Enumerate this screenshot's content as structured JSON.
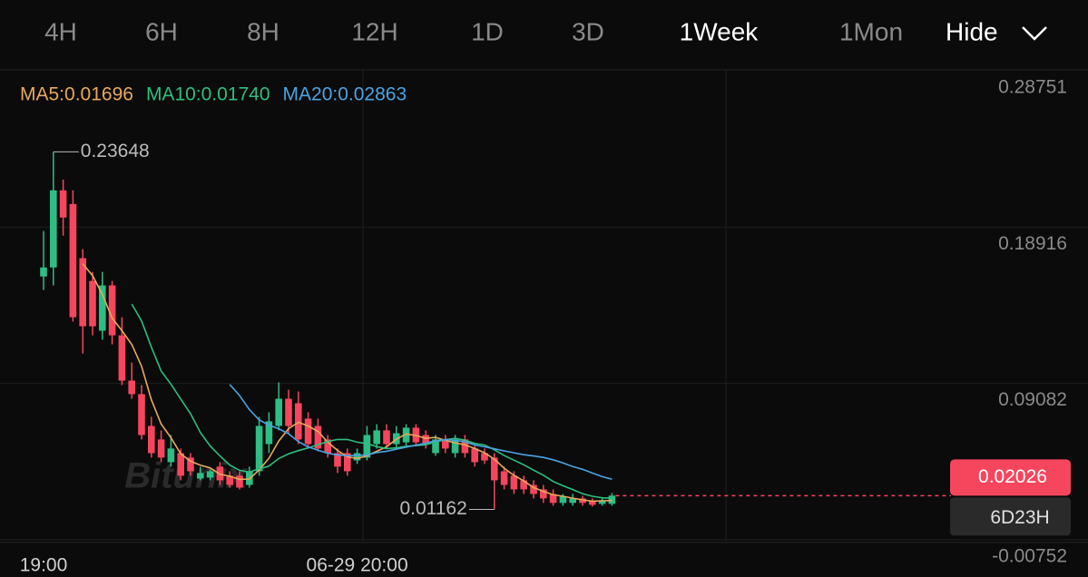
{
  "tabs": [
    {
      "label": "4H"
    },
    {
      "label": "6H"
    },
    {
      "label": "8H"
    },
    {
      "label": "12H"
    },
    {
      "label": "1D"
    },
    {
      "label": "3D"
    },
    {
      "label": "1Week",
      "active": true
    },
    {
      "label": "1Mon"
    }
  ],
  "hide_button": "Hide",
  "watermark": "Bitunix",
  "chart_data": {
    "type": "candlestick",
    "up_color": "#2ebd85",
    "down_color": "#f6465d",
    "categories": [
      "19:00",
      null,
      null,
      null,
      null,
      null,
      null,
      null,
      null,
      null,
      null,
      null,
      null,
      null,
      null,
      null,
      null,
      null,
      null,
      null,
      null,
      null,
      null,
      null,
      null,
      null,
      null,
      null,
      null,
      null,
      null,
      null,
      "06-29 20:00",
      null,
      null,
      null,
      null,
      null,
      null,
      null,
      null,
      null,
      null,
      null,
      null,
      null,
      null,
      null,
      null,
      null,
      null,
      null,
      null,
      null,
      null,
      null,
      null,
      null,
      null
    ],
    "open": [
      0.1581,
      0.1638,
      0.2123,
      0.2037,
      0.1696,
      0.1553,
      0.124,
      0.1525,
      0.1211,
      0.0926,
      0.0841,
      0.0641,
      0.0556,
      0.0413,
      0.047,
      0.0442,
      0.031,
      0.0316,
      0.0385,
      0.0328,
      0.0328,
      0.027,
      0.0356,
      0.0527,
      0.0641,
      0.0812,
      0.0784,
      0.0687,
      0.0641,
      0.0556,
      0.047,
      0.047,
      0.0424,
      0.0442,
      0.0527,
      0.0613,
      0.0527,
      0.0538,
      0.063,
      0.0584,
      0.047,
      0.0556,
      0.047,
      0.0556,
      0.0499,
      0.047,
      0.0442,
      0.0356,
      0.0328,
      0.0299,
      0.027,
      0.0242,
      0.0213,
      0.0157,
      0.0157,
      0.0185,
      0.0168,
      0.0151,
      0.0151
    ],
    "high": [
      0.1867,
      0.23648,
      0.2191,
      0.2123,
      0.1753,
      0.161,
      0.161,
      0.1553,
      0.1325,
      0.104,
      0.0898,
      0.0698,
      0.0613,
      0.0584,
      0.0499,
      0.047,
      0.0385,
      0.0367,
      0.0413,
      0.0356,
      0.0356,
      0.0385,
      0.0698,
      0.0727,
      0.0915,
      0.0869,
      0.0858,
      0.0727,
      0.0687,
      0.0584,
      0.0499,
      0.0499,
      0.0499,
      0.0641,
      0.0652,
      0.0652,
      0.0641,
      0.0652,
      0.0652,
      0.0613,
      0.0584,
      0.0584,
      0.0584,
      0.0584,
      0.0516,
      0.0499,
      0.047,
      0.0385,
      0.0356,
      0.0328,
      0.0299,
      0.027,
      0.0242,
      0.0213,
      0.0213,
      0.0202,
      0.0185,
      0.0185,
      0.0219
    ],
    "low": [
      0.1496,
      0.1525,
      0.1838,
      0.1297,
      0.1097,
      0.1211,
      0.1183,
      0.1154,
      0.0898,
      0.0812,
      0.0556,
      0.0442,
      0.0413,
      0.0385,
      0.0299,
      0.0328,
      0.0299,
      0.0299,
      0.027,
      0.0253,
      0.0242,
      0.0253,
      0.0328,
      0.047,
      0.0613,
      0.0595,
      0.0527,
      0.0499,
      0.0481,
      0.0442,
      0.0345,
      0.0328,
      0.0402,
      0.0424,
      0.0499,
      0.0499,
      0.0504,
      0.0516,
      0.0516,
      0.0499,
      0.0453,
      0.047,
      0.0442,
      0.0442,
      0.0385,
      0.0402,
      0.01162,
      0.0242,
      0.0213,
      0.0213,
      0.0185,
      0.0157,
      0.0139,
      0.0139,
      0.0139,
      0.0139,
      0.0134,
      0.0139,
      0.0139
    ],
    "close": [
      0.1638,
      0.2123,
      0.1952,
      0.1325,
      0.1268,
      0.1268,
      0.1525,
      0.1211,
      0.0926,
      0.0841,
      0.0584,
      0.047,
      0.0442,
      0.0499,
      0.0328,
      0.0356,
      0.0345,
      0.0356,
      0.0299,
      0.027,
      0.0253,
      0.0356,
      0.0641,
      0.067,
      0.0812,
      0.0641,
      0.0556,
      0.0527,
      0.0499,
      0.047,
      0.0385,
      0.0356,
      0.047,
      0.0584,
      0.0613,
      0.0527,
      0.0595,
      0.063,
      0.0538,
      0.0527,
      0.0556,
      0.0499,
      0.0556,
      0.047,
      0.0413,
      0.0424,
      0.0299,
      0.027,
      0.0242,
      0.0242,
      0.0213,
      0.0185,
      0.0157,
      0.0196,
      0.0185,
      0.0157,
      0.0145,
      0.0168,
      0.02026
    ],
    "ma": [
      {
        "name": "MA5:0.01696",
        "color": "#e8a95b",
        "values": [
          null,
          null,
          null,
          null,
          0.1661,
          0.1587,
          0.1468,
          0.1319,
          0.124,
          0.1154,
          0.1017,
          0.0806,
          0.0653,
          0.0567,
          0.0465,
          0.0419,
          0.0394,
          0.0377,
          0.0337,
          0.0325,
          0.0305,
          0.0307,
          0.0364,
          0.0438,
          0.0546,
          0.0624,
          0.0664,
          0.0641,
          0.0607,
          0.0539,
          0.0487,
          0.0447,
          0.0436,
          0.0453,
          0.0482,
          0.051,
          0.0558,
          0.059,
          0.0581,
          0.0563,
          0.0569,
          0.055,
          0.0535,
          0.0522,
          0.0499,
          0.0472,
          0.0432,
          0.0375,
          0.033,
          0.0295,
          0.0253,
          0.023,
          0.0208,
          0.0199,
          0.0187,
          0.0176,
          0.0168,
          0.017,
          0.0172
        ]
      },
      {
        "name": "MA10:0.01740",
        "color": "#2cbf7f",
        "values": [
          null,
          null,
          null,
          null,
          null,
          null,
          null,
          null,
          null,
          0.1408,
          0.1302,
          0.1137,
          0.0986,
          0.0904,
          0.081,
          0.0718,
          0.06,
          0.0515,
          0.0452,
          0.0395,
          0.0362,
          0.0351,
          0.0371,
          0.0388,
          0.0436,
          0.0465,
          0.0486,
          0.0503,
          0.0523,
          0.0543,
          0.0556,
          0.0556,
          0.0539,
          0.053,
          0.0511,
          0.0499,
          0.0503,
          0.0513,
          0.0517,
          0.0523,
          0.054,
          0.0554,
          0.0563,
          0.0552,
          0.0531,
          0.0521,
          0.0491,
          0.0455,
          0.0426,
          0.0397,
          0.0363,
          0.0331,
          0.0292,
          0.0265,
          0.0241,
          0.0215,
          0.0199,
          0.0189,
          0.0186
        ]
      },
      {
        "name": "MA20:0.02863",
        "color": "#4ba3e3",
        "values": [
          null,
          null,
          null,
          null,
          null,
          null,
          null,
          null,
          null,
          null,
          null,
          null,
          null,
          null,
          null,
          null,
          null,
          null,
          null,
          0.0902,
          0.0832,
          0.0744,
          0.0679,
          0.0646,
          0.0623,
          0.0592,
          0.0543,
          0.0509,
          0.0488,
          0.0469,
          0.0459,
          0.0454,
          0.0455,
          0.0459,
          0.0474,
          0.0482,
          0.0495,
          0.0508,
          0.052,
          0.0533,
          0.0548,
          0.0555,
          0.0551,
          0.0541,
          0.0521,
          0.051,
          0.0497,
          0.0484,
          0.0472,
          0.046,
          0.0452,
          0.0443,
          0.0428,
          0.0409,
          0.0386,
          0.0368,
          0.0345,
          0.0322,
          0.0306
        ]
      }
    ],
    "ylim": [
      -0.00752,
      0.28751
    ],
    "yticks": [
      0.28751,
      0.18916,
      0.09082,
      -0.00752
    ],
    "grid": true,
    "max_label": 0.23648,
    "min_label": 0.01162,
    "last_price": 0.02026,
    "countdown": "6D23H"
  }
}
